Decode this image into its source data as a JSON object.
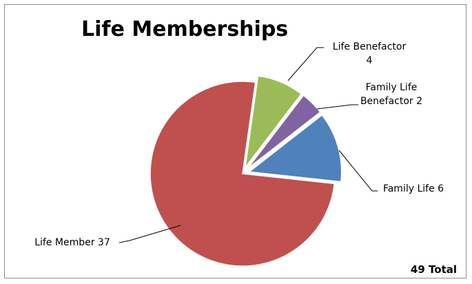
{
  "chart_data": {
    "type": "pie",
    "title": "Life Memberships",
    "total_label": "49 Total",
    "slices": [
      {
        "name": "Life Member",
        "value": 37,
        "label_lines": [
          "Life Member 37"
        ],
        "color": "#c0504d",
        "exploded": false
      },
      {
        "name": "Life Benefactor",
        "value": 4,
        "label_lines": [
          "Life Benefactor",
          "4"
        ],
        "color": "#9bbb59",
        "exploded": true
      },
      {
        "name": "Family Life Benefactor",
        "value": 2,
        "label_lines": [
          "Family Life",
          "Benefactor 2"
        ],
        "color": "#8064a2",
        "exploded": true
      },
      {
        "name": "Family Life",
        "value": 6,
        "label_lines": [
          "Family Life 6"
        ],
        "color": "#4f81bd",
        "exploded": true
      }
    ],
    "legend": "none"
  }
}
